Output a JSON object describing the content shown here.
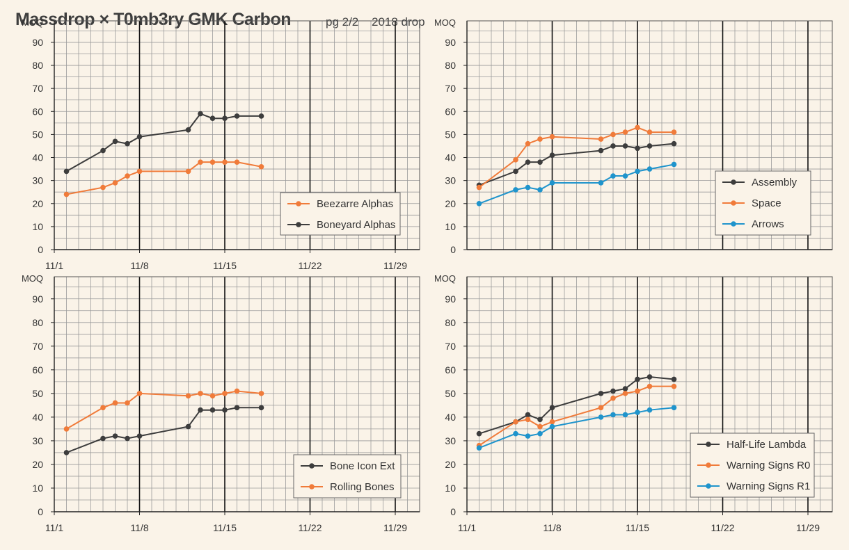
{
  "page": {
    "title": "Massdrop × T0mb3ry GMK Carbon",
    "page_label": "pg 2/2",
    "year_label": "2018 drop"
  },
  "colors": {
    "background": "#faf3e8",
    "dark_series": "#3d3d3d",
    "orange_series": "#f07b3a",
    "blue_series": "#1f94cc",
    "minor_grid": "#9a9a9a",
    "major_grid": "#111111"
  },
  "chart_data": [
    {
      "type": "line",
      "ylabel": "MOQ",
      "ylim": [
        0,
        90
      ],
      "xlim": [
        "11/1",
        "12/1"
      ],
      "x_ticks": [
        "11/1",
        "11/8",
        "11/15",
        "11/22",
        "11/29"
      ],
      "y_ticks": [
        0,
        10,
        20,
        30,
        40,
        50,
        60,
        70,
        80,
        90
      ],
      "grid": true,
      "legend_position": "bottom-right",
      "legend_order": [
        1,
        0
      ],
      "series": [
        {
          "name": "Boneyard Alphas",
          "color": "#3d3d3d",
          "x": [
            "11/2",
            "11/5",
            "11/6",
            "11/7",
            "11/8",
            "11/12",
            "11/13",
            "11/14",
            "11/15",
            "11/16",
            "11/18"
          ],
          "y": [
            34,
            43,
            47,
            46,
            49,
            52,
            59,
            57,
            57,
            58,
            58
          ]
        },
        {
          "name": "Beezarre Alphas",
          "color": "#f07b3a",
          "x": [
            "11/2",
            "11/5",
            "11/6",
            "11/7",
            "11/8",
            "11/12",
            "11/13",
            "11/14",
            "11/15",
            "11/16",
            "11/18"
          ],
          "y": [
            24,
            27,
            29,
            32,
            34,
            34,
            38,
            38,
            38,
            38,
            36
          ]
        }
      ]
    },
    {
      "type": "line",
      "ylabel": "MOQ",
      "ylim": [
        0,
        90
      ],
      "xlim": [
        "11/1",
        "12/1"
      ],
      "x_ticks": [],
      "y_ticks": [
        0,
        10,
        20,
        30,
        40,
        50,
        60,
        70,
        80,
        90
      ],
      "grid": true,
      "legend_position": "right",
      "legend_order": [
        0,
        1,
        2
      ],
      "series": [
        {
          "name": "Assembly",
          "color": "#3d3d3d",
          "x": [
            "11/2",
            "11/5",
            "11/6",
            "11/7",
            "11/8",
            "11/12",
            "11/13",
            "11/14",
            "11/15",
            "11/16",
            "11/18"
          ],
          "y": [
            28,
            34,
            38,
            38,
            41,
            43,
            45,
            45,
            44,
            45,
            46
          ]
        },
        {
          "name": "Space",
          "color": "#f07b3a",
          "x": [
            "11/2",
            "11/5",
            "11/6",
            "11/7",
            "11/8",
            "11/12",
            "11/13",
            "11/14",
            "11/15",
            "11/16",
            "11/18"
          ],
          "y": [
            27,
            39,
            46,
            48,
            49,
            48,
            50,
            51,
            53,
            51,
            51
          ]
        },
        {
          "name": "Arrows",
          "color": "#1f94cc",
          "x": [
            "11/2",
            "11/5",
            "11/6",
            "11/7",
            "11/8",
            "11/12",
            "11/13",
            "11/14",
            "11/15",
            "11/16",
            "11/18"
          ],
          "y": [
            20,
            26,
            27,
            26,
            29,
            29,
            32,
            32,
            34,
            35,
            37
          ]
        }
      ]
    },
    {
      "type": "line",
      "ylabel": "MOQ",
      "ylim": [
        0,
        90
      ],
      "xlim": [
        "11/1",
        "12/1"
      ],
      "x_ticks": [
        "11/1",
        "11/8",
        "11/15",
        "11/22",
        "11/29"
      ],
      "y_ticks": [
        0,
        10,
        20,
        30,
        40,
        50,
        60,
        70,
        80,
        90
      ],
      "grid": true,
      "legend_position": "bottom-right",
      "legend_order": [
        0,
        1
      ],
      "series": [
        {
          "name": "Bone Icon Ext",
          "color": "#3d3d3d",
          "x": [
            "11/2",
            "11/5",
            "11/6",
            "11/7",
            "11/8",
            "11/12",
            "11/13",
            "11/14",
            "11/15",
            "11/16",
            "11/18"
          ],
          "y": [
            25,
            31,
            32,
            31,
            32,
            36,
            43,
            43,
            43,
            44,
            44
          ]
        },
        {
          "name": "Rolling Bones",
          "color": "#f07b3a",
          "x": [
            "11/2",
            "11/5",
            "11/6",
            "11/7",
            "11/8",
            "11/12",
            "11/13",
            "11/14",
            "11/15",
            "11/16",
            "11/18"
          ],
          "y": [
            35,
            44,
            46,
            46,
            50,
            49,
            50,
            49,
            50,
            51,
            50
          ]
        }
      ]
    },
    {
      "type": "line",
      "ylabel": "MOQ",
      "ylim": [
        0,
        90
      ],
      "xlim": [
        "11/1",
        "12/1"
      ],
      "x_ticks": [
        "11/1",
        "11/8",
        "11/15",
        "11/22",
        "11/29"
      ],
      "y_ticks": [
        0,
        10,
        20,
        30,
        40,
        50,
        60,
        70,
        80,
        90
      ],
      "grid": true,
      "legend_position": "bottom-right",
      "legend_order": [
        0,
        1,
        2
      ],
      "series": [
        {
          "name": "Half-Life Lambda",
          "color": "#3d3d3d",
          "x": [
            "11/2",
            "11/5",
            "11/6",
            "11/7",
            "11/8",
            "11/12",
            "11/13",
            "11/14",
            "11/15",
            "11/16",
            "11/18"
          ],
          "y": [
            33,
            38,
            41,
            39,
            44,
            50,
            51,
            52,
            56,
            57,
            56
          ]
        },
        {
          "name": "Warning Signs R0",
          "color": "#f07b3a",
          "x": [
            "11/2",
            "11/5",
            "11/6",
            "11/7",
            "11/8",
            "11/12",
            "11/13",
            "11/14",
            "11/15",
            "11/16",
            "11/18"
          ],
          "y": [
            28,
            38,
            39,
            36,
            38,
            44,
            48,
            50,
            51,
            53,
            53
          ]
        },
        {
          "name": "Warning Signs R1",
          "color": "#1f94cc",
          "x": [
            "11/2",
            "11/5",
            "11/6",
            "11/7",
            "11/8",
            "11/12",
            "11/13",
            "11/14",
            "11/15",
            "11/16",
            "11/18"
          ],
          "y": [
            27,
            33,
            32,
            33,
            36,
            40,
            41,
            41,
            42,
            43,
            44
          ]
        }
      ]
    }
  ]
}
